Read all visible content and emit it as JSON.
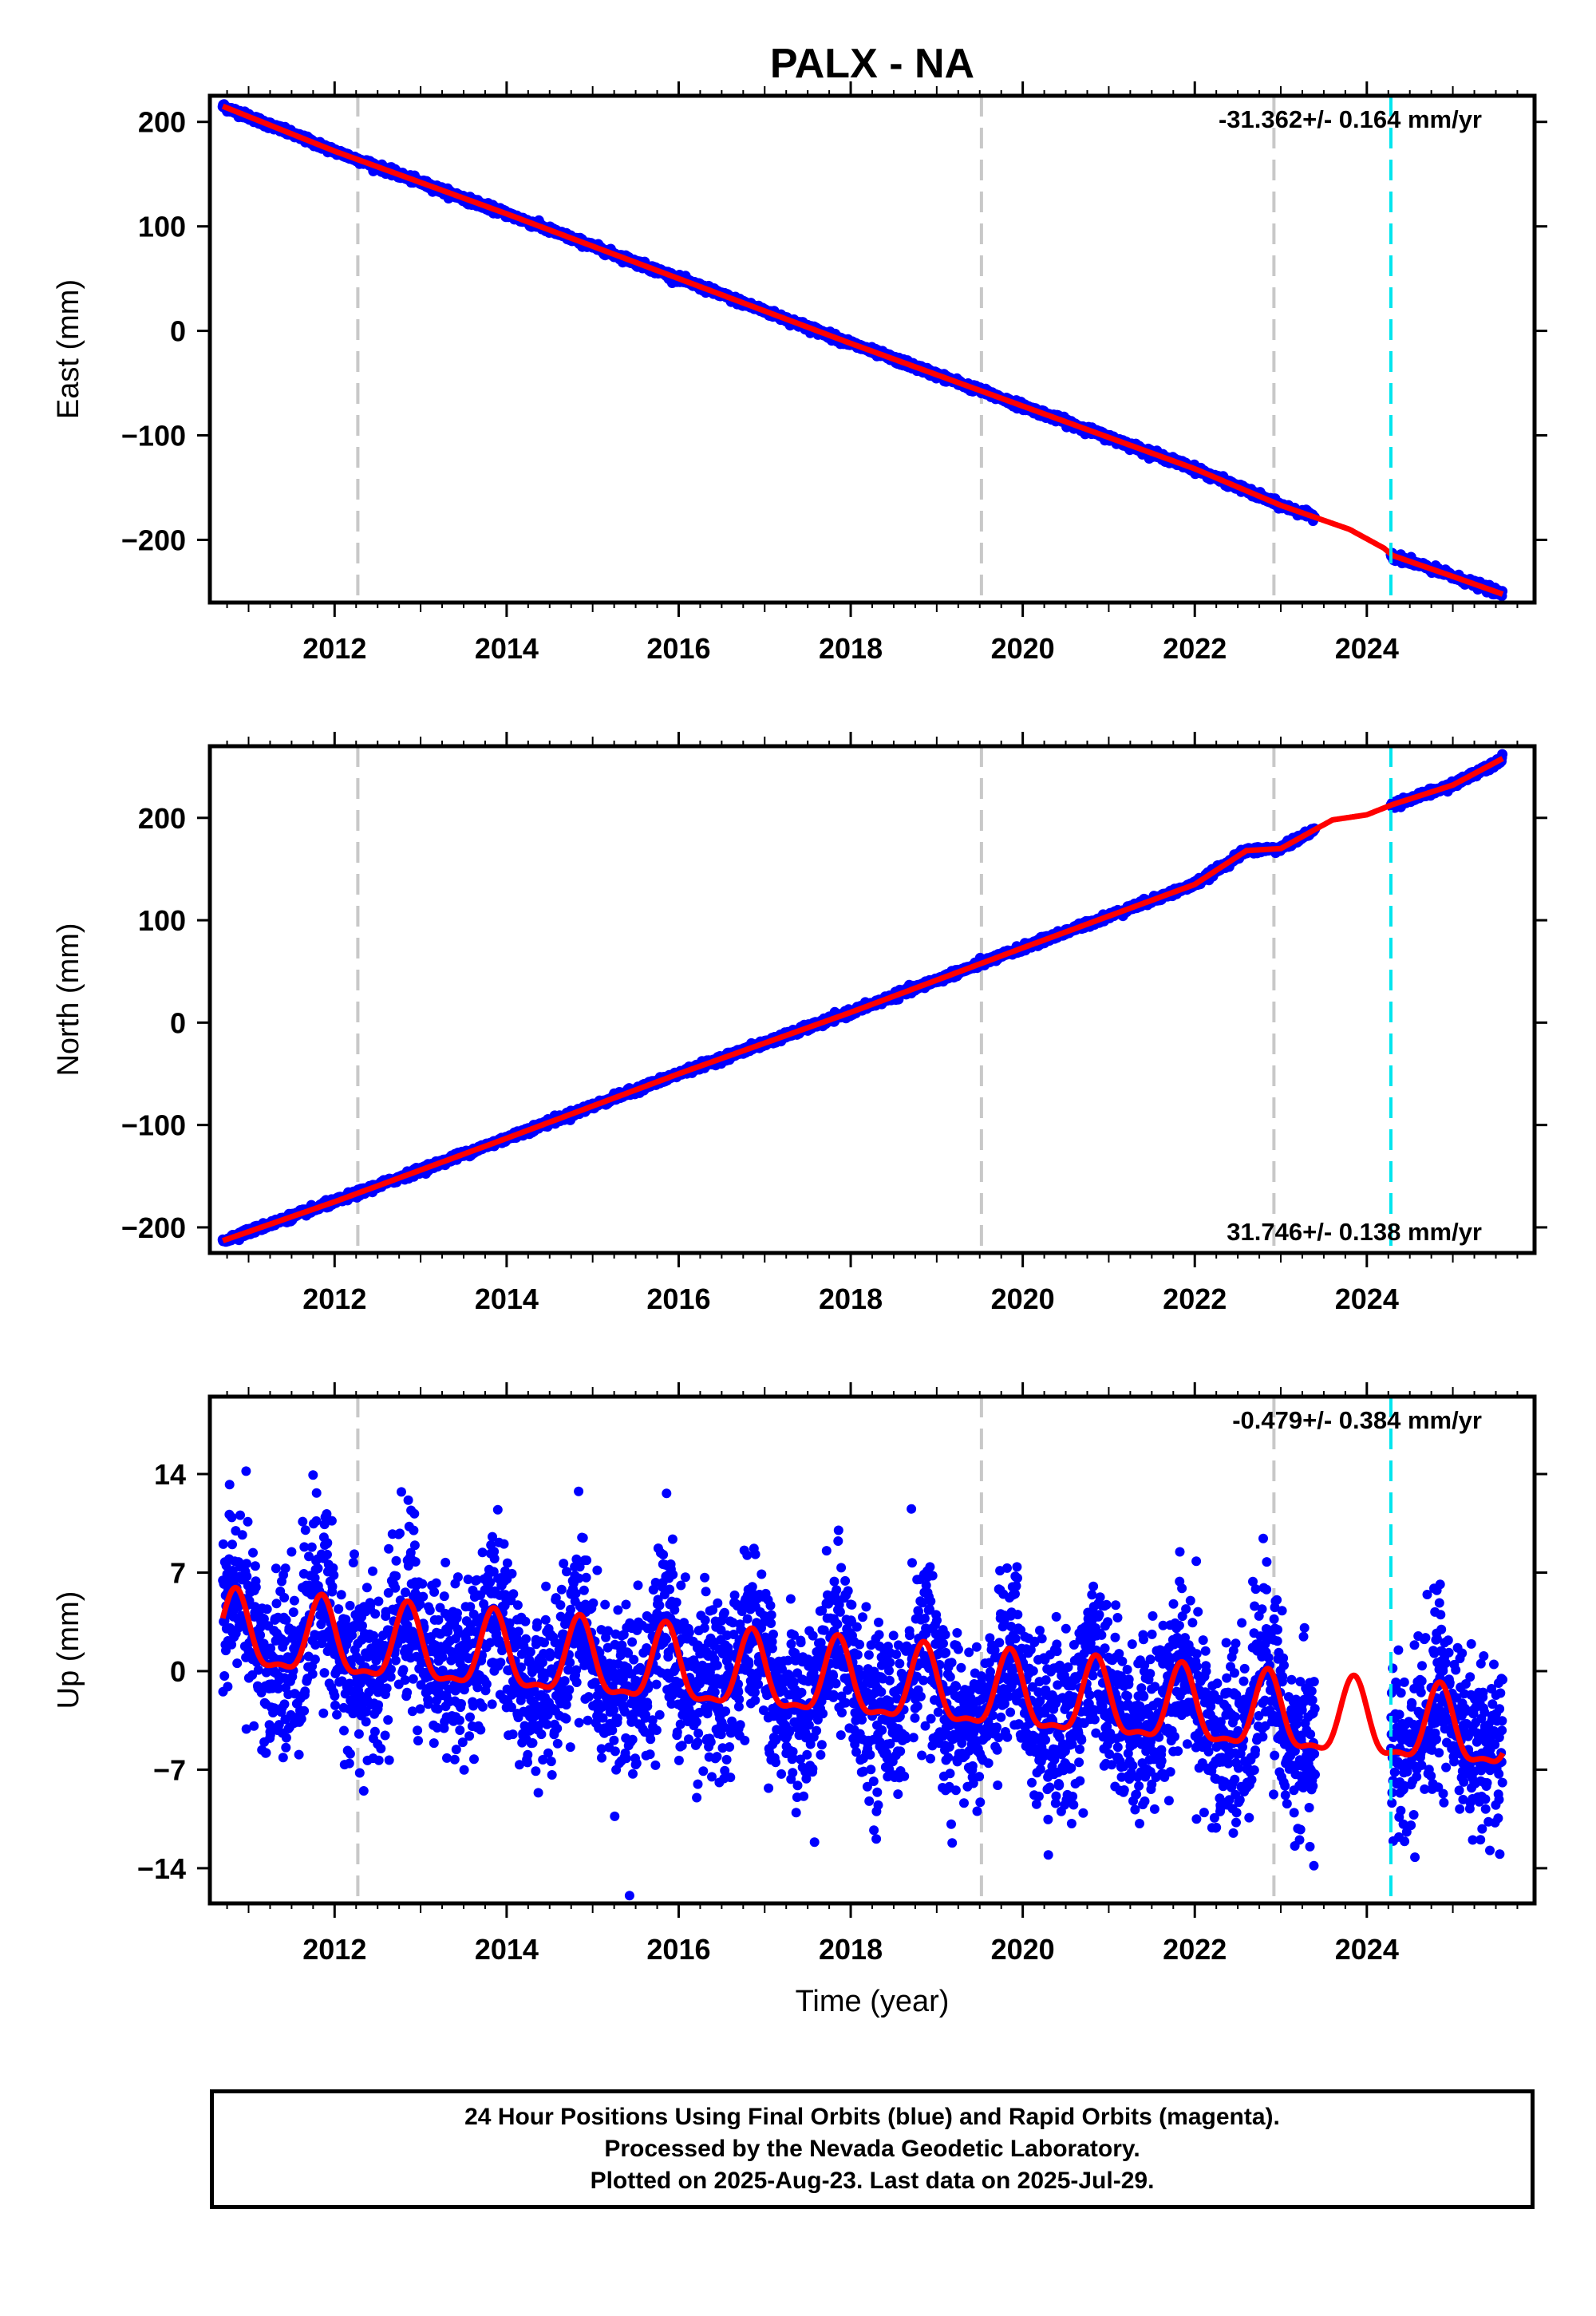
{
  "title": "PALX - NA",
  "colors": {
    "observations": "#0000ff",
    "model": "#ff0000",
    "equipment_change": "#c8c8c8",
    "earthquake": "#00e5ee",
    "frame": "#000000"
  },
  "chart_data": [
    {
      "type": "scatter",
      "name": "east",
      "ylabel": "East (mm)",
      "xlabel": "",
      "xlim": [
        2010.55,
        2025.95
      ],
      "ylim": [
        -260,
        225
      ],
      "yticks": [
        200,
        100,
        0,
        -100,
        -200
      ],
      "ytick_labels": [
        "200",
        "100",
        "0",
        "−100",
        "−200"
      ],
      "xticks": [
        2012,
        2014,
        2016,
        2018,
        2020,
        2022,
        2024
      ],
      "xtick_labels": [
        "2012",
        "2014",
        "2016",
        "2018",
        "2020",
        "2022",
        "2024"
      ],
      "annotation": "-31.362+/- 0.164 mm/yr",
      "annotation_position": "top-right",
      "equipment_changes": [
        2012.27,
        2019.52,
        2022.92
      ],
      "earthquake": 2024.28,
      "series": [
        {
          "kind": "observations",
          "segments": [
            [
              2010.7,
              2023.4
            ],
            [
              2024.28,
              2025.58
            ]
          ],
          "trend": -31.362,
          "offset_at_2010_7": 215
        },
        {
          "kind": "model",
          "x": [
            2010.7,
            2012.0,
            2014.0,
            2016.0,
            2018.0,
            2020.0,
            2022.0,
            2023.0,
            2023.8,
            2024.2,
            2024.3,
            2025.0,
            2025.58
          ],
          "y": [
            215,
            172,
            112,
            50,
            -12,
            -72,
            -132,
            -167,
            -190,
            -208,
            -215,
            -235,
            -252
          ]
        }
      ]
    },
    {
      "type": "scatter",
      "name": "north",
      "ylabel": "North (mm)",
      "xlabel": "",
      "xlim": [
        2010.55,
        2025.95
      ],
      "ylim": [
        -225,
        270
      ],
      "yticks": [
        200,
        100,
        0,
        -100,
        -200
      ],
      "ytick_labels": [
        "200",
        "100",
        "0",
        "−100",
        "−200"
      ],
      "xticks": [
        2012,
        2014,
        2016,
        2018,
        2020,
        2022,
        2024
      ],
      "xtick_labels": [
        "2012",
        "2014",
        "2016",
        "2018",
        "2020",
        "2022",
        "2024"
      ],
      "annotation": "31.746+/- 0.138 mm/yr",
      "annotation_position": "bottom-right",
      "equipment_changes": [
        2012.27,
        2019.52,
        2022.92
      ],
      "earthquake": 2024.28,
      "series": [
        {
          "kind": "observations",
          "segments": [
            [
              2010.7,
              2023.4
            ],
            [
              2024.28,
              2025.58
            ]
          ],
          "trend": 31.746,
          "offset_at_2010_7": -213
        },
        {
          "kind": "model",
          "x": [
            2010.7,
            2012.0,
            2014.0,
            2016.0,
            2018.0,
            2020.0,
            2022.0,
            2022.6,
            2023.0,
            2023.6,
            2024.0,
            2024.3,
            2025.0,
            2025.58
          ],
          "y": [
            -213,
            -175,
            -113,
            -50,
            10,
            73,
            135,
            168,
            170,
            198,
            203,
            213,
            232,
            258
          ]
        }
      ]
    },
    {
      "type": "scatter",
      "name": "up",
      "ylabel": "Up (mm)",
      "xlabel": "Time (year)",
      "xlim": [
        2010.55,
        2025.95
      ],
      "ylim": [
        -16.5,
        19.5
      ],
      "yticks": [
        14,
        7,
        0,
        -7,
        -14
      ],
      "ytick_labels": [
        "14",
        "7",
        "0",
        "−7",
        "−14"
      ],
      "xticks": [
        2012,
        2014,
        2016,
        2018,
        2020,
        2022,
        2024
      ],
      "xtick_labels": [
        "2012",
        "2014",
        "2016",
        "2018",
        "2020",
        "2022",
        "2024"
      ],
      "annotation": "-0.479+/- 0.384 mm/yr",
      "annotation_position": "top-right",
      "equipment_changes": [
        2012.27,
        2019.52,
        2022.92
      ],
      "earthquake": 2024.28,
      "series": [
        {
          "kind": "observations",
          "segments": [
            [
              2010.7,
              2023.4
            ],
            [
              2024.28,
              2025.58
            ]
          ],
          "trend": -0.479,
          "offset_at_2010_7": 3,
          "annual_amplitude": 2.8,
          "scatter_sd": 3.0
        },
        {
          "kind": "model",
          "annual_amplitude": 2.6,
          "x_start": 2010.7,
          "x_end": 2025.58,
          "trend": -0.479,
          "offset_at_2010_7": 2.5
        }
      ]
    }
  ],
  "caption": {
    "line1": "24 Hour Positions Using Final Orbits (blue) and Rapid Orbits (magenta).",
    "line2": "Processed by the Nevada Geodetic Laboratory.",
    "line3": "Plotted on 2025-Aug-23. Last data on 2025-Jul-29."
  }
}
